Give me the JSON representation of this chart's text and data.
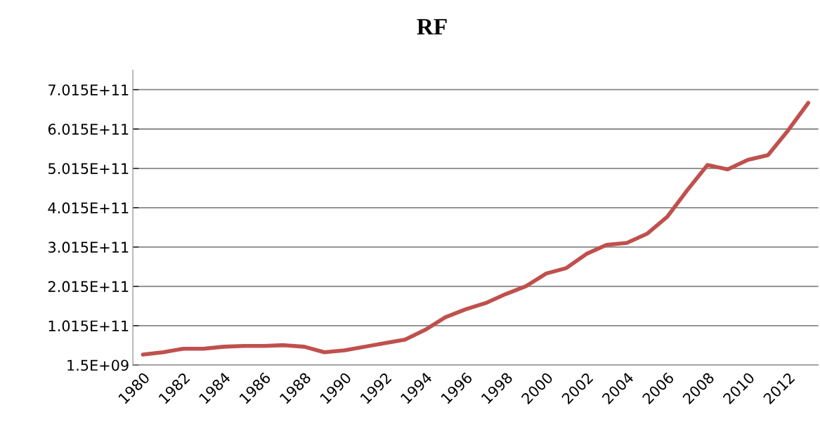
{
  "chart_data": {
    "type": "line",
    "title": "RF",
    "categories": [
      "1980",
      null,
      "1982",
      null,
      "1984",
      null,
      "1986",
      null,
      "1988",
      null,
      "1990",
      null,
      "1992",
      null,
      "1994",
      null,
      "1996",
      null,
      "1998",
      null,
      "2000",
      null,
      "2002",
      null,
      "2004",
      null,
      "2006",
      null,
      "2008",
      null,
      "2010",
      null,
      "2012",
      null
    ],
    "series": [
      {
        "color": "#c0504d",
        "values": [
          28000000000.0,
          34000000000.0,
          43000000000.0,
          43000000000.0,
          48000000000.0,
          50000000000.0,
          50000000000.0,
          52000000000.0,
          48000000000.0,
          34000000000.0,
          39000000000.0,
          48000000000.0,
          57000000000.0,
          66000000000.0,
          91000000000.0,
          123000000000.0,
          143000000000.0,
          159000000000.0,
          182000000000.0,
          202000000000.0,
          234000000000.0,
          248000000000.0,
          284000000000.0,
          307000000000.0,
          312000000000.0,
          335000000000.0,
          378000000000.0,
          446000000000.0,
          510000000000.0,
          499000000000.0,
          523000000000.0,
          535000000000.0,
          598000000000.0,
          668000000000.0
        ]
      }
    ],
    "ylim": [
      1500000000.0,
      751500000000.0
    ],
    "yticks": [
      {
        "value": 1500000000.0,
        "label": "1.5E+09"
      },
      {
        "value": 101500000000.0,
        "label": "1.015E+11"
      },
      {
        "value": 201500000000.0,
        "label": "2.015E+11"
      },
      {
        "value": 301500000000.0,
        "label": "3.015E+11"
      },
      {
        "value": 401500000000.0,
        "label": "4.015E+11"
      },
      {
        "value": 501500000000.0,
        "label": "5.015E+11"
      },
      {
        "value": 601500000000.0,
        "label": "6.015E+11"
      },
      {
        "value": 701500000000.0,
        "label": "7.015E+11"
      }
    ],
    "grid": "y",
    "marker": "none",
    "line_style": "solid"
  }
}
